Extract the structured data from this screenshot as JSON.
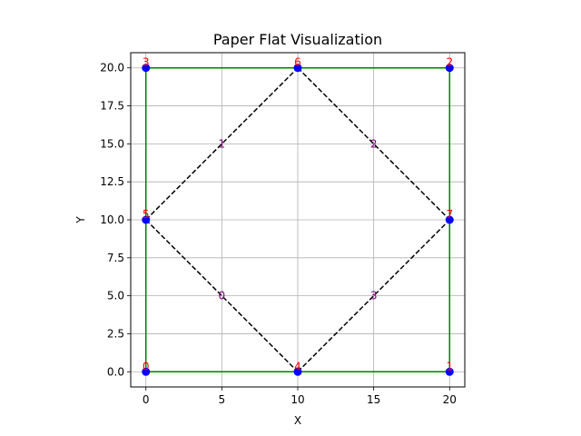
{
  "chart_data": {
    "type": "scatter",
    "title": "Paper Flat Visualization",
    "xlabel": "X",
    "ylabel": "Y",
    "xlim": [
      -1,
      21
    ],
    "ylim": [
      -1,
      21
    ],
    "grid": true,
    "xticks": [
      0,
      5,
      10,
      15,
      20
    ],
    "xtick_labels": [
      "0",
      "5",
      "10",
      "15",
      "20"
    ],
    "yticks": [
      0.0,
      2.5,
      5.0,
      7.5,
      10.0,
      12.5,
      15.0,
      17.5,
      20.0
    ],
    "ytick_labels": [
      "0.0",
      "2.5",
      "5.0",
      "7.5",
      "10.0",
      "12.5",
      "15.0",
      "17.5",
      "20.0"
    ],
    "vertices": [
      {
        "id": "0",
        "x": 0,
        "y": 0
      },
      {
        "id": "1",
        "x": 20,
        "y": 0
      },
      {
        "id": "2",
        "x": 20,
        "y": 20
      },
      {
        "id": "3",
        "x": 0,
        "y": 20
      },
      {
        "id": "4",
        "x": 10,
        "y": 0
      },
      {
        "id": "5",
        "x": 0,
        "y": 10
      },
      {
        "id": "6",
        "x": 10,
        "y": 20
      },
      {
        "id": "7",
        "x": 20,
        "y": 10
      }
    ],
    "boundary_edges": [
      [
        0,
        4
      ],
      [
        4,
        1
      ],
      [
        1,
        7
      ],
      [
        7,
        2
      ],
      [
        2,
        6
      ],
      [
        6,
        3
      ],
      [
        3,
        5
      ],
      [
        5,
        0
      ]
    ],
    "crease_edges": [
      {
        "id": "0",
        "from": 5,
        "to": 4
      },
      {
        "id": "1",
        "from": 5,
        "to": 6
      },
      {
        "id": "2",
        "from": 6,
        "to": 7
      },
      {
        "id": "3",
        "from": 4,
        "to": 7
      }
    ],
    "colors": {
      "boundary": "#008000",
      "crease": "#000000",
      "vertex": "#0000ff",
      "vertex_label": "#ff0000",
      "crease_label": "#800080",
      "grid": "#b0b0b0"
    }
  }
}
